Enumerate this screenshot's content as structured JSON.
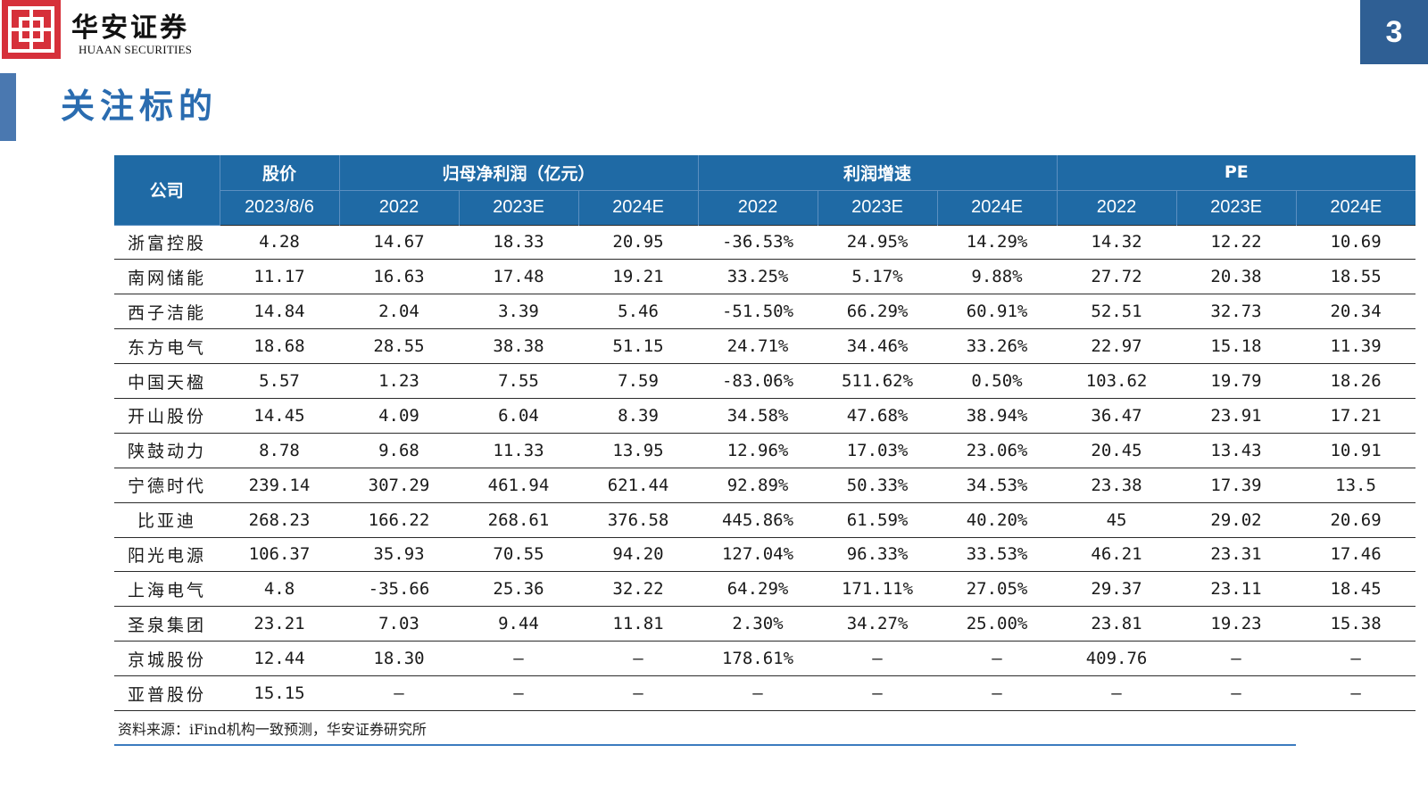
{
  "header": {
    "logo_cn": "华安证券",
    "logo_en": "HUAAN SECURITIES",
    "page_number": "3",
    "title": "关注标的"
  },
  "table": {
    "group_headers": {
      "company": "公司",
      "price": "股价",
      "net_profit": "归母净利润（亿元）",
      "growth": "利润增速",
      "pe": "PE"
    },
    "sub_headers": {
      "price_date": "2023/8/6",
      "years": [
        "2022",
        "2023E",
        "2024E",
        "2022",
        "2023E",
        "2024E",
        "2022",
        "2023E",
        "2024E"
      ]
    },
    "rows": [
      [
        "浙富控股",
        "4.28",
        "14.67",
        "18.33",
        "20.95",
        "-36.53%",
        "24.95%",
        "14.29%",
        "14.32",
        "12.22",
        "10.69"
      ],
      [
        "南网储能",
        "11.17",
        "16.63",
        "17.48",
        "19.21",
        "33.25%",
        "5.17%",
        "9.88%",
        "27.72",
        "20.38",
        "18.55"
      ],
      [
        "西子洁能",
        "14.84",
        "2.04",
        "3.39",
        "5.46",
        "-51.50%",
        "66.29%",
        "60.91%",
        "52.51",
        "32.73",
        "20.34"
      ],
      [
        "东方电气",
        "18.68",
        "28.55",
        "38.38",
        "51.15",
        "24.71%",
        "34.46%",
        "33.26%",
        "22.97",
        "15.18",
        "11.39"
      ],
      [
        "中国天楹",
        "5.57",
        "1.23",
        "7.55",
        "7.59",
        "-83.06%",
        "511.62%",
        "0.50%",
        "103.62",
        "19.79",
        "18.26"
      ],
      [
        "开山股份",
        "14.45",
        "4.09",
        "6.04",
        "8.39",
        "34.58%",
        "47.68%",
        "38.94%",
        "36.47",
        "23.91",
        "17.21"
      ],
      [
        "陕鼓动力",
        "8.78",
        "9.68",
        "11.33",
        "13.95",
        "12.96%",
        "17.03%",
        "23.06%",
        "20.45",
        "13.43",
        "10.91"
      ],
      [
        "宁德时代",
        "239.14",
        "307.29",
        "461.94",
        "621.44",
        "92.89%",
        "50.33%",
        "34.53%",
        "23.38",
        "17.39",
        "13.5"
      ],
      [
        "比亚迪",
        "268.23",
        "166.22",
        "268.61",
        "376.58",
        "445.86%",
        "61.59%",
        "40.20%",
        "45",
        "29.02",
        "20.69"
      ],
      [
        "阳光电源",
        "106.37",
        "35.93",
        "70.55",
        "94.20",
        "127.04%",
        "96.33%",
        "33.53%",
        "46.21",
        "23.31",
        "17.46"
      ],
      [
        "上海电气",
        "4.8",
        "-35.66",
        "25.36",
        "32.22",
        "64.29%",
        "171.11%",
        "27.05%",
        "29.37",
        "23.11",
        "18.45"
      ],
      [
        "圣泉集团",
        "23.21",
        "7.03",
        "9.44",
        "11.81",
        "2.30%",
        "34.27%",
        "25.00%",
        "23.81",
        "19.23",
        "15.38"
      ],
      [
        "京城股份",
        "12.44",
        "18.30",
        "—",
        "—",
        "178.61%",
        "—",
        "—",
        "409.76",
        "—",
        "—"
      ],
      [
        "亚普股份",
        "15.15",
        "—",
        "—",
        "—",
        "—",
        "—",
        "—",
        "—",
        "—",
        "—"
      ]
    ]
  },
  "source": "资料来源：iFind机构一致预测，华安证券研究所",
  "colors": {
    "header_bg": "#1f6aa5",
    "title": "#2a6cb0",
    "logo_red": "#d6303a",
    "page_tab": "#2f5f94"
  }
}
